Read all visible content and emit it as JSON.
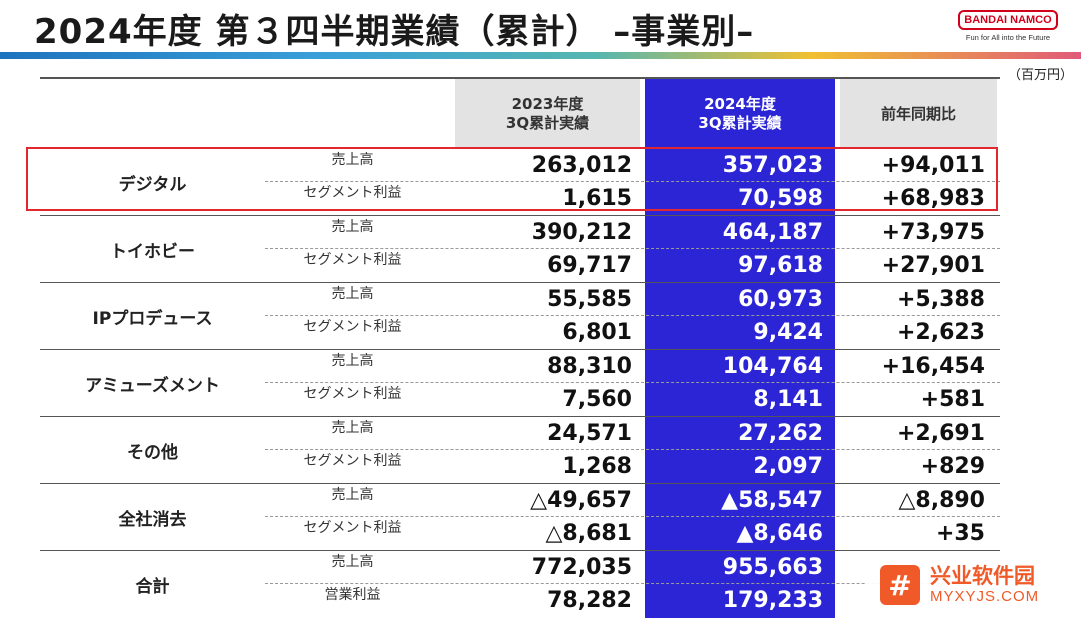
{
  "title": "2024年度 第３四半期業績（累計） –事業別–",
  "logo": {
    "brand": "BANDAI NAMCO",
    "tagline": "Fun for All into the Future"
  },
  "unit": "（百万円）",
  "columns": {
    "prev": "2023年度\n3Q累計実績",
    "curr": "2024年度\n3Q累計実績",
    "yoy": "前年同期比"
  },
  "segments": [
    {
      "name": "デジタル",
      "rows": [
        {
          "label": "売上高",
          "prev": "263,012",
          "curr": "357,023",
          "yoy": "+94,011"
        },
        {
          "label": "セグメント利益",
          "prev": "1,615",
          "curr": "70,598",
          "yoy": "+68,983"
        }
      ]
    },
    {
      "name": "トイホビー",
      "rows": [
        {
          "label": "売上高",
          "prev": "390,212",
          "curr": "464,187",
          "yoy": "+73,975"
        },
        {
          "label": "セグメント利益",
          "prev": "69,717",
          "curr": "97,618",
          "yoy": "+27,901"
        }
      ]
    },
    {
      "name": "IPプロデュース",
      "rows": [
        {
          "label": "売上高",
          "prev": "55,585",
          "curr": "60,973",
          "yoy": "+5,388"
        },
        {
          "label": "セグメント利益",
          "prev": "6,801",
          "curr": "9,424",
          "yoy": "+2,623"
        }
      ]
    },
    {
      "name": "アミューズメント",
      "rows": [
        {
          "label": "売上高",
          "prev": "88,310",
          "curr": "104,764",
          "yoy": "+16,454"
        },
        {
          "label": "セグメント利益",
          "prev": "7,560",
          "curr": "8,141",
          "yoy": "+581"
        }
      ]
    },
    {
      "name": "その他",
      "rows": [
        {
          "label": "売上高",
          "prev": "24,571",
          "curr": "27,262",
          "yoy": "+2,691"
        },
        {
          "label": "セグメント利益",
          "prev": "1,268",
          "curr": "2,097",
          "yoy": "+829"
        }
      ]
    },
    {
      "name": "全社消去",
      "rows": [
        {
          "label": "売上高",
          "prev": "△49,657",
          "curr": "▲58,547",
          "yoy": "△8,890"
        },
        {
          "label": "セグメント利益",
          "prev": "△8,681",
          "curr": "▲8,646",
          "yoy": "+35"
        }
      ]
    },
    {
      "name": "合計",
      "rows": [
        {
          "label": "売上高",
          "prev": "772,035",
          "curr": "955,663",
          "yoy": ""
        },
        {
          "label": "営業利益",
          "prev": "78,282",
          "curr": "179,233",
          "yoy": ""
        }
      ]
    }
  ],
  "watermark": {
    "symbol": "#",
    "cn": "兴业软件园",
    "en": "MYXYJS.COM"
  },
  "colors": {
    "current_column": "#2c25d6",
    "highlight_border": "#e0282e",
    "brand_red": "#d0021b"
  }
}
